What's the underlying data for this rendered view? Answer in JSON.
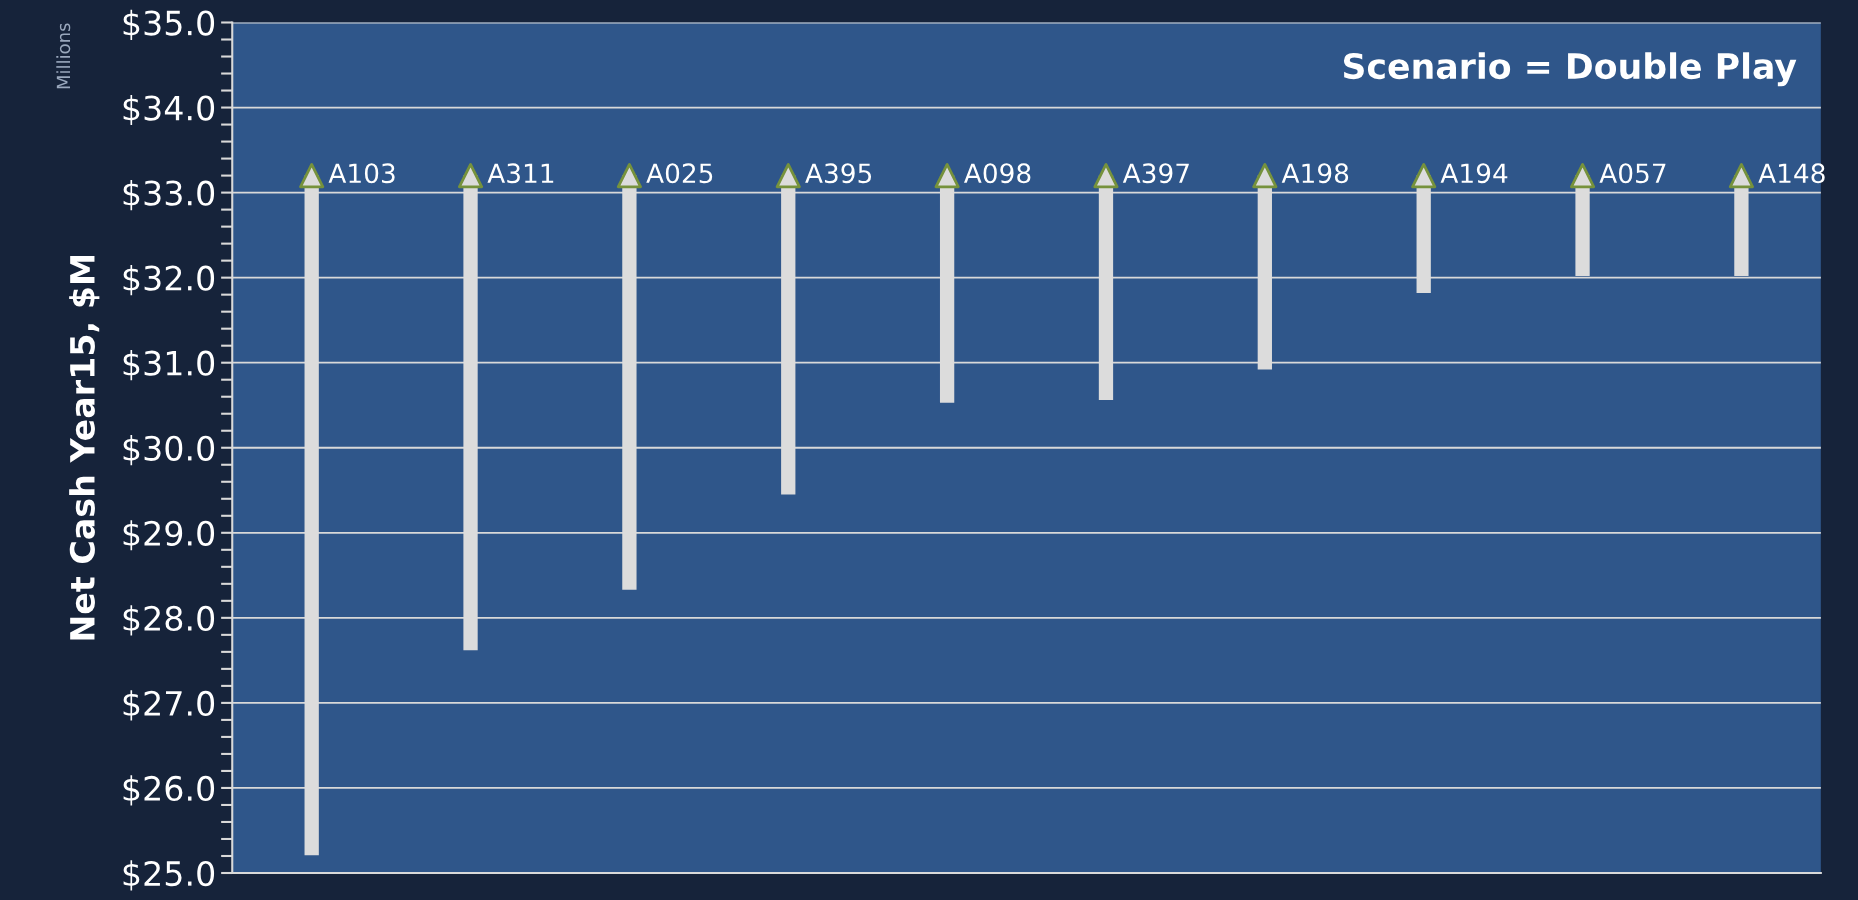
{
  "chart_data": {
    "type": "bar",
    "title": "Scenario = Double Play",
    "ylabel": "Net Cash Year15, $M",
    "annotations": [
      "Millions"
    ],
    "categories": [
      "A103",
      "A311",
      "A025",
      "A395",
      "A098",
      "A397",
      "A198",
      "A194",
      "A057",
      "A148"
    ],
    "series": [
      {
        "color": "#dcdcdc",
        "base": [
          25.21,
          27.62,
          28.33,
          29.45,
          30.53,
          30.56,
          30.92,
          31.82,
          32.02,
          32.02
        ],
        "values": [
          7.99,
          5.58,
          4.87,
          3.75,
          2.67,
          2.64,
          2.28,
          1.38,
          1.18,
          1.18
        ]
      },
      {
        "type": "scatter",
        "color": "#dcdcdc",
        "marker": "triangle",
        "values": [
          33.2,
          33.2,
          33.2,
          33.2,
          33.2,
          33.2,
          33.2,
          33.2,
          33.2,
          33.2
        ]
      }
    ],
    "ylim": [
      25,
      35
    ],
    "yticks": [
      {
        "value": 25,
        "label": "$25.0"
      },
      {
        "value": 25.2,
        "label": null
      },
      {
        "value": 25.4,
        "label": null
      },
      {
        "value": 25.6,
        "label": null
      },
      {
        "value": 25.8,
        "label": null
      },
      {
        "value": 26,
        "label": "$26.0"
      },
      {
        "value": 26.2,
        "label": null
      },
      {
        "value": 26.4,
        "label": null
      },
      {
        "value": 26.6,
        "label": null
      },
      {
        "value": 26.8,
        "label": null
      },
      {
        "value": 27,
        "label": "$27.0"
      },
      {
        "value": 27.2,
        "label": null
      },
      {
        "value": 27.4,
        "label": null
      },
      {
        "value": 27.6,
        "label": null
      },
      {
        "value": 27.8,
        "label": null
      },
      {
        "value": 28,
        "label": "$28.0"
      },
      {
        "value": 28.2,
        "label": null
      },
      {
        "value": 28.4,
        "label": null
      },
      {
        "value": 28.6,
        "label": null
      },
      {
        "value": 28.8,
        "label": null
      },
      {
        "value": 29,
        "label": "$29.0"
      },
      {
        "value": 29.2,
        "label": null
      },
      {
        "value": 29.4,
        "label": null
      },
      {
        "value": 29.6,
        "label": null
      },
      {
        "value": 29.8,
        "label": null
      },
      {
        "value": 30,
        "label": "$30.0"
      },
      {
        "value": 30.2,
        "label": null
      },
      {
        "value": 30.4,
        "label": null
      },
      {
        "value": 30.6,
        "label": null
      },
      {
        "value": 30.8,
        "label": null
      },
      {
        "value": 31,
        "label": "$31.0"
      },
      {
        "value": 31.2,
        "label": null
      },
      {
        "value": 31.4,
        "label": null
      },
      {
        "value": 31.6,
        "label": null
      },
      {
        "value": 31.8,
        "label": null
      },
      {
        "value": 32,
        "label": "$32.0"
      },
      {
        "value": 32.2,
        "label": null
      },
      {
        "value": 32.4,
        "label": null
      },
      {
        "value": 32.6,
        "label": null
      },
      {
        "value": 32.8,
        "label": null
      },
      {
        "value": 33,
        "label": "$33.0"
      },
      {
        "value": 33.2,
        "label": null
      },
      {
        "value": 33.4,
        "label": null
      },
      {
        "value": 33.6,
        "label": null
      },
      {
        "value": 33.8,
        "label": null
      },
      {
        "value": 34,
        "label": "$34.0"
      },
      {
        "value": 34.2,
        "label": null
      },
      {
        "value": 34.4,
        "label": null
      },
      {
        "value": 34.6,
        "label": null
      },
      {
        "value": 34.8,
        "label": null
      },
      {
        "value": 35,
        "label": "$35.0"
      }
    ],
    "tick_labels": "y",
    "grid": "y",
    "legend": false
  }
}
